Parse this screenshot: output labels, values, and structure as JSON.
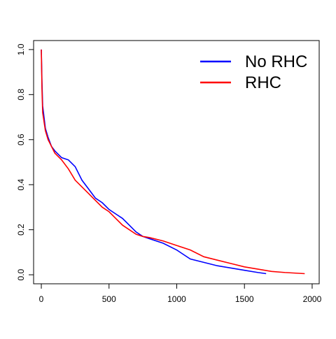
{
  "chart_data": {
    "type": "line",
    "xlim": [
      -57,
      2052
    ],
    "ylim": [
      -0.04,
      1.04
    ],
    "xticks": [
      0,
      500,
      1000,
      1500,
      2000
    ],
    "yticks": [
      {
        "value": 0,
        "label": "0.0"
      },
      0.2,
      0.4,
      0.6,
      0.8,
      {
        "value": 1,
        "label": "1.0"
      }
    ],
    "legend": "top-right",
    "series": [
      {
        "name": "No RHC",
        "color": "#0000ff",
        "x": [
          0,
          5,
          10,
          20,
          30,
          50,
          75,
          100,
          150,
          200,
          250,
          300,
          350,
          400,
          450,
          500,
          550,
          600,
          650,
          700,
          750,
          800,
          900,
          1000,
          1050,
          1100,
          1200,
          1300,
          1400,
          1500,
          1600,
          1660
        ],
        "values": [
          1.0,
          0.85,
          0.75,
          0.7,
          0.65,
          0.61,
          0.57,
          0.55,
          0.52,
          0.51,
          0.48,
          0.42,
          0.38,
          0.34,
          0.32,
          0.29,
          0.27,
          0.25,
          0.22,
          0.19,
          0.17,
          0.16,
          0.14,
          0.11,
          0.09,
          0.07,
          0.055,
          0.04,
          0.03,
          0.02,
          0.01,
          0.005
        ]
      },
      {
        "name": "RHC",
        "color": "#ff0000",
        "x": [
          0,
          5,
          10,
          20,
          30,
          50,
          75,
          100,
          150,
          200,
          250,
          300,
          350,
          400,
          450,
          500,
          550,
          600,
          650,
          700,
          750,
          800,
          900,
          1000,
          1100,
          1200,
          1300,
          1400,
          1500,
          1600,
          1700,
          1800,
          1945
        ],
        "values": [
          1.0,
          0.82,
          0.72,
          0.68,
          0.64,
          0.6,
          0.57,
          0.54,
          0.51,
          0.47,
          0.42,
          0.39,
          0.36,
          0.33,
          0.3,
          0.28,
          0.25,
          0.22,
          0.2,
          0.18,
          0.17,
          0.165,
          0.15,
          0.13,
          0.11,
          0.08,
          0.065,
          0.05,
          0.035,
          0.025,
          0.015,
          0.01,
          0.005
        ]
      }
    ]
  }
}
